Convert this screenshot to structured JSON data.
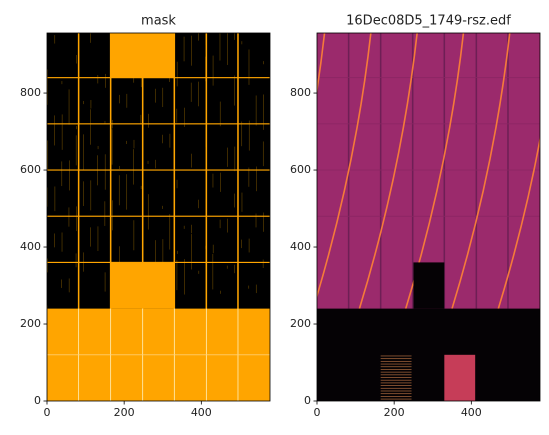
{
  "chart_data": [
    {
      "type": "image",
      "title": "mask",
      "xlim": [
        0,
        578
      ],
      "ylim": [
        0,
        956
      ],
      "xticks": [
        0,
        200,
        400
      ],
      "yticks": [
        0,
        200,
        400,
        600,
        800
      ]
    },
    {
      "type": "image",
      "title": "16Dec08D5_1749-rsz.edf",
      "xlim": [
        0,
        578
      ],
      "ylim": [
        0,
        956
      ],
      "xticks": [
        0,
        200,
        400
      ],
      "yticks": [
        0,
        200,
        400,
        600,
        800
      ]
    }
  ]
}
